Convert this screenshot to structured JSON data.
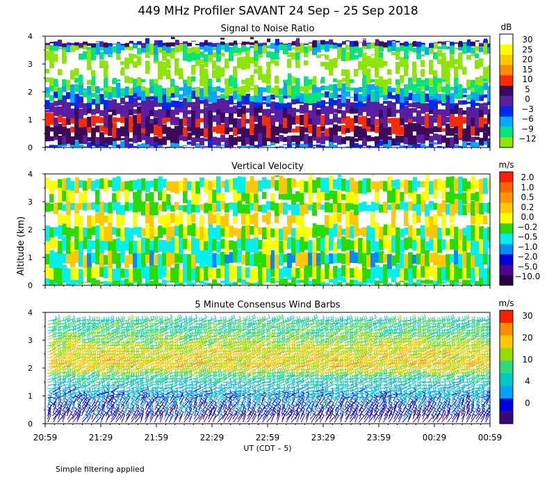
{
  "header": {
    "title": "449 MHz Profiler SAVANT 24 Sep – 25 Sep 2018"
  },
  "y_axis_title": "Altitude (km)",
  "x_axis_title": "UT  (CDT – 5)",
  "footer": "Simple filtering applied",
  "chart_data": [
    {
      "type": "heatmap",
      "title": "Signal to Noise Ratio",
      "ylim": [
        0,
        4
      ],
      "yticks": [
        "0",
        "1",
        "2",
        "3",
        "4"
      ],
      "colorbar": {
        "unit": "dB",
        "levels": [
          "30",
          "25",
          "20",
          "15",
          "10",
          "5",
          "0",
          "−3",
          "−6",
          "−9",
          "−12"
        ],
        "colors": [
          "#ffffff",
          "#ffff00",
          "#ffc800",
          "#ff8c00",
          "#ff2a00",
          "#3c0a5a",
          "#5a1ea0",
          "#0028f0",
          "#00aaff",
          "#00e67d",
          "#8ce600"
        ]
      },
      "layers": [
        {
          "height_km": 3.85,
          "colors": [
            "#ffffff"
          ]
        },
        {
          "height_km": 3.7,
          "colors": [
            "#5a1ea0",
            "#3c0a5a",
            "#0028f0"
          ]
        },
        {
          "height_km": 3.45,
          "colors": [
            "#00e67d",
            "#8ce600",
            "#00aaff"
          ]
        },
        {
          "height_km": 3.2,
          "colors": [
            "#8ce600",
            "#ffffff",
            "#00e67d"
          ]
        },
        {
          "height_km": 2.9,
          "colors": [
            "#ffffff",
            "#8ce600"
          ]
        },
        {
          "height_km": 2.55,
          "colors": [
            "#ffffff",
            "#8ce600",
            "#ffffff"
          ]
        },
        {
          "height_km": 2.25,
          "colors": [
            "#8ce600",
            "#00e67d",
            "#ffffff"
          ]
        },
        {
          "height_km": 1.95,
          "colors": [
            "#00e67d",
            "#00aaff",
            "#8ce600"
          ]
        },
        {
          "height_km": 1.7,
          "colors": [
            "#00aaff",
            "#0028f0",
            "#00e67d"
          ]
        },
        {
          "height_km": 1.45,
          "colors": [
            "#0028f0",
            "#5a1ea0"
          ]
        },
        {
          "height_km": 1.15,
          "colors": [
            "#5a1ea0",
            "#3c0a5a",
            "#5a1ea0"
          ]
        },
        {
          "height_km": 0.8,
          "colors": [
            "#3c0a5a",
            "#5a1ea0",
            "#ff2a00"
          ]
        },
        {
          "height_km": 0.45,
          "colors": [
            "#3c0a5a",
            "#ff2a00",
            "#3c0a5a"
          ]
        },
        {
          "height_km": 0.15,
          "colors": [
            "#5a1ea0",
            "#3c0a5a"
          ]
        },
        {
          "height_km": 0.0,
          "colors": [
            "#0028f0",
            "#00aaff"
          ]
        }
      ]
    },
    {
      "type": "heatmap",
      "title": "Vertical Velocity",
      "ylim": [
        0,
        4
      ],
      "yticks": [
        "0",
        "1",
        "2",
        "3",
        "4"
      ],
      "colorbar": {
        "unit": "m/s",
        "levels": [
          "2.0",
          "1.0",
          "0.5",
          "0.2",
          "0.0",
          "−0.2",
          "−0.5",
          "−1.0",
          "−2.0",
          "−5.0",
          "−10.0"
        ],
        "colors": [
          "#ff1e00",
          "#ff6400",
          "#ff9600",
          "#ffc800",
          "#ffff00",
          "#28dc00",
          "#00f0f0",
          "#008cff",
          "#0000dc",
          "#500096",
          "#280046"
        ]
      },
      "layers": [
        {
          "height_km": 3.85,
          "colors": [
            "#ffffff"
          ]
        },
        {
          "height_km": 3.4,
          "colors": [
            "#28dc00",
            "#ffff00",
            "#ffc800",
            "#00f0f0"
          ]
        },
        {
          "height_km": 3.0,
          "colors": [
            "#ffffff",
            "#28dc00",
            "#ffff00"
          ]
        },
        {
          "height_km": 2.6,
          "colors": [
            "#28dc00",
            "#ffc800",
            "#00f0f0"
          ]
        },
        {
          "height_km": 2.15,
          "colors": [
            "#ffffff",
            "#ffff00",
            "#ffc800"
          ]
        },
        {
          "height_km": 1.7,
          "colors": [
            "#ffc800",
            "#28dc00",
            "#00f0f0",
            "#ffff00"
          ]
        },
        {
          "height_km": 1.2,
          "colors": [
            "#00f0f0",
            "#28dc00",
            "#ffff00"
          ]
        },
        {
          "height_km": 0.7,
          "colors": [
            "#28dc00",
            "#00f0f0",
            "#ffc800",
            "#008cff"
          ]
        },
        {
          "height_km": 0.2,
          "colors": [
            "#00f0f0",
            "#28dc00",
            "#ffff00"
          ]
        },
        {
          "height_km": 0.0,
          "colors": [
            "#28dc00",
            "#00f0f0"
          ]
        }
      ]
    },
    {
      "type": "wind-barbs",
      "title": "5 Minute Consensus Wind Barbs",
      "ylim": [
        0,
        4
      ],
      "yticks": [
        "0",
        "1",
        "2",
        "3",
        "4"
      ],
      "colorbar": {
        "unit": "m/s",
        "levels": [
          "30",
          "20",
          "10",
          "4",
          "0"
        ],
        "colors": [
          "#ff1e00",
          "#ff8c00",
          "#ffc800",
          "#96dc00",
          "#28dc78",
          "#00c8c8",
          "#00a0ff",
          "#0000dc",
          "#3c0a78"
        ]
      },
      "speed_by_altitude": [
        {
          "height_km": 3.8,
          "speed": 14
        },
        {
          "height_km": 3.2,
          "speed": 16
        },
        {
          "height_km": 2.6,
          "speed": 22
        },
        {
          "height_km": 2.0,
          "speed": 24
        },
        {
          "height_km": 1.6,
          "speed": 14
        },
        {
          "height_km": 1.2,
          "speed": 10
        },
        {
          "height_km": 0.8,
          "speed": 7
        },
        {
          "height_km": 0.4,
          "speed": 5
        },
        {
          "height_km": 0.1,
          "speed": 2
        }
      ]
    }
  ],
  "x_ticks": [
    "20:59",
    "21:29",
    "21:59",
    "22:29",
    "22:59",
    "23:29",
    "23:59",
    "00:29",
    "00:59"
  ]
}
